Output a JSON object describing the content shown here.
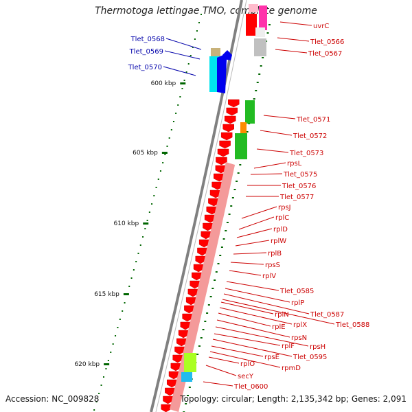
{
  "title": "Thermotoga lettingae TMO, complete genome",
  "footer": {
    "accession": "Accession: NC_009828",
    "topology": "Topology: circular; Length: 2,135,342 bp; Genes: 2,091"
  },
  "colors": {
    "forward_label": "#0000aa",
    "reverse_label": "#cc0000",
    "tick": "#006600",
    "backbone": "#808080"
  },
  "scale_ticks": [
    "600 kbp",
    "605 kbp",
    "610 kbp",
    "615 kbp",
    "620 kbp"
  ],
  "forward_genes": [
    {
      "label": "Tlet_0568",
      "color": "#c8b27a"
    },
    {
      "label": "Tlet_0569",
      "color": "#00e5ee"
    },
    {
      "label": "Tlet_0570",
      "color": "#0000ee"
    }
  ],
  "reverse_genes": [
    {
      "label": "uvrC",
      "color": "#ff33aa"
    },
    {
      "label": "Tlet_0566",
      "color": "#ff0000"
    },
    {
      "label": "Tlet_0567",
      "color": "#c0c0c0"
    },
    {
      "label": "Tlet_0571",
      "color": "#ff0000"
    },
    {
      "label": "Tlet_0572",
      "color": "#ff8c00"
    },
    {
      "label": "Tlet_0573",
      "color": "#22bb22"
    },
    {
      "label": "rpsL",
      "color": "#ff0000"
    },
    {
      "label": "Tlet_0575",
      "color": "#ff0000"
    },
    {
      "label": "Tlet_0576",
      "color": "#ff0000"
    },
    {
      "label": "Tlet_0577",
      "color": "#ff0000"
    },
    {
      "label": "rpsJ",
      "color": "#ff0000"
    },
    {
      "label": "rplC",
      "color": "#ff0000"
    },
    {
      "label": "rplD",
      "color": "#ff0000"
    },
    {
      "label": "rplW",
      "color": "#ff0000"
    },
    {
      "label": "rplB",
      "color": "#ff0000"
    },
    {
      "label": "rpsS",
      "color": "#ff0000"
    },
    {
      "label": "rplV",
      "color": "#ff0000"
    },
    {
      "label": "Tlet_0585",
      "color": "#ff0000"
    },
    {
      "label": "rplP",
      "color": "#ff0000"
    },
    {
      "label": "Tlet_0587",
      "color": "#ff0000"
    },
    {
      "label": "Tlet_0588",
      "color": "#ff0000"
    },
    {
      "label": "rplN",
      "color": "#ff0000"
    },
    {
      "label": "rplX",
      "color": "#ff0000"
    },
    {
      "label": "rplE",
      "color": "#ff0000"
    },
    {
      "label": "rpsN",
      "color": "#ff0000"
    },
    {
      "label": "rpsH",
      "color": "#ff0000"
    },
    {
      "label": "rplF",
      "color": "#ff0000"
    },
    {
      "label": "Tlet_0595",
      "color": "#ff0000"
    },
    {
      "label": "rpsE",
      "color": "#ff0000"
    },
    {
      "label": "rpmD",
      "color": "#ff0000"
    },
    {
      "label": "rplO",
      "color": "#ff0000"
    },
    {
      "label": "secY",
      "color": "#ff0000"
    },
    {
      "label": "Tlet_0600",
      "color": "#ff0000"
    }
  ]
}
